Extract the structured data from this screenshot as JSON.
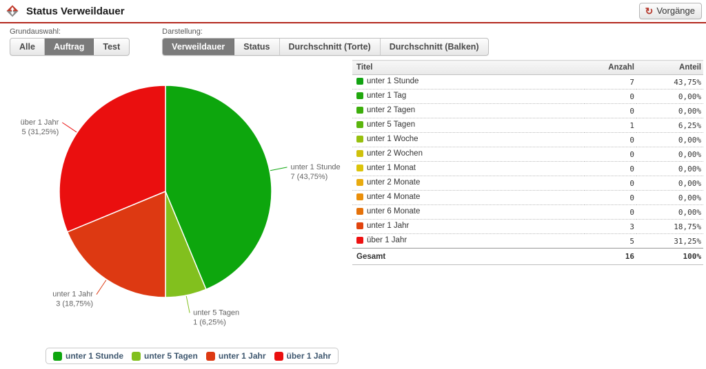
{
  "header": {
    "title": "Status Verweildauer",
    "refresh_button": {
      "label": "Vorgänge",
      "icon": "refresh-icon",
      "icon_color": "#b5362a"
    }
  },
  "filters": {
    "grundauswahl": {
      "label": "Grundauswahl:",
      "options": [
        {
          "label": "Alle",
          "selected": false
        },
        {
          "label": "Auftrag",
          "selected": true
        },
        {
          "label": "Test",
          "selected": false
        }
      ]
    },
    "darstellung": {
      "label": "Darstellung:",
      "options": [
        {
          "label": "Verweildauer",
          "selected": true
        },
        {
          "label": "Status",
          "selected": false
        },
        {
          "label": "Durchschnitt (Torte)",
          "selected": false
        },
        {
          "label": "Durchschnitt (Balken)",
          "selected": false
        }
      ]
    }
  },
  "chart_data": {
    "type": "pie",
    "title": "",
    "categories": [
      "unter 1 Stunde",
      "unter 5 Tagen",
      "unter 1 Jahr",
      "über 1 Jahr"
    ],
    "values": [
      7,
      1,
      3,
      5
    ],
    "percent_labels": [
      "43,75%",
      "6,25%",
      "18,75%",
      "31,25%"
    ],
    "colors": [
      "#0da60d",
      "#82c01e",
      "#dd3912",
      "#ea0f0f"
    ],
    "start_angle_deg": 0,
    "direction": "clockwise",
    "label_color": "#636363",
    "legend_position": "bottom",
    "legend": [
      {
        "label": "unter 1 Stunde",
        "color": "#0da60d"
      },
      {
        "label": "unter 5 Tagen",
        "color": "#82c01e"
      },
      {
        "label": "unter 1 Jahr",
        "color": "#dd3912"
      },
      {
        "label": "über 1 Jahr",
        "color": "#ea0f0f"
      }
    ]
  },
  "table": {
    "columns": [
      "Titel",
      "Anzahl",
      "Anteil"
    ],
    "rows": [
      {
        "label": "unter 1 Stunde",
        "color": "#12a312",
        "anzahl": "7",
        "anteil": "43,75%"
      },
      {
        "label": "unter 1 Tag",
        "color": "#21a80e",
        "anzahl": "0",
        "anteil": "0,00%"
      },
      {
        "label": "unter 2 Tagen",
        "color": "#3cae0b",
        "anzahl": "0",
        "anteil": "0,00%"
      },
      {
        "label": "unter 5 Tagen",
        "color": "#5bb50d",
        "anzahl": "1",
        "anteil": "6,25%"
      },
      {
        "label": "unter 1 Woche",
        "color": "#97c00e",
        "anzahl": "0",
        "anteil": "0,00%"
      },
      {
        "label": "unter 2 Wochen",
        "color": "#cfc10b",
        "anzahl": "0",
        "anteil": "0,00%"
      },
      {
        "label": "unter 1 Monat",
        "color": "#dcc40a",
        "anzahl": "0",
        "anteil": "0,00%"
      },
      {
        "label": "unter 2 Monate",
        "color": "#e9ab0f",
        "anzahl": "0",
        "anteil": "0,00%"
      },
      {
        "label": "unter 4 Monate",
        "color": "#ea8f0b",
        "anzahl": "0",
        "anteil": "0,00%"
      },
      {
        "label": "unter 6 Monate",
        "color": "#e5720a",
        "anzahl": "0",
        "anteil": "0,00%"
      },
      {
        "label": "unter 1 Jahr",
        "color": "#e1440e",
        "anzahl": "3",
        "anteil": "18,75%"
      },
      {
        "label": "über 1 Jahr",
        "color": "#ee1111",
        "anzahl": "5",
        "anteil": "31,25%"
      }
    ],
    "total": {
      "label": "Gesamt",
      "anzahl": "16",
      "anteil": "100%"
    }
  }
}
